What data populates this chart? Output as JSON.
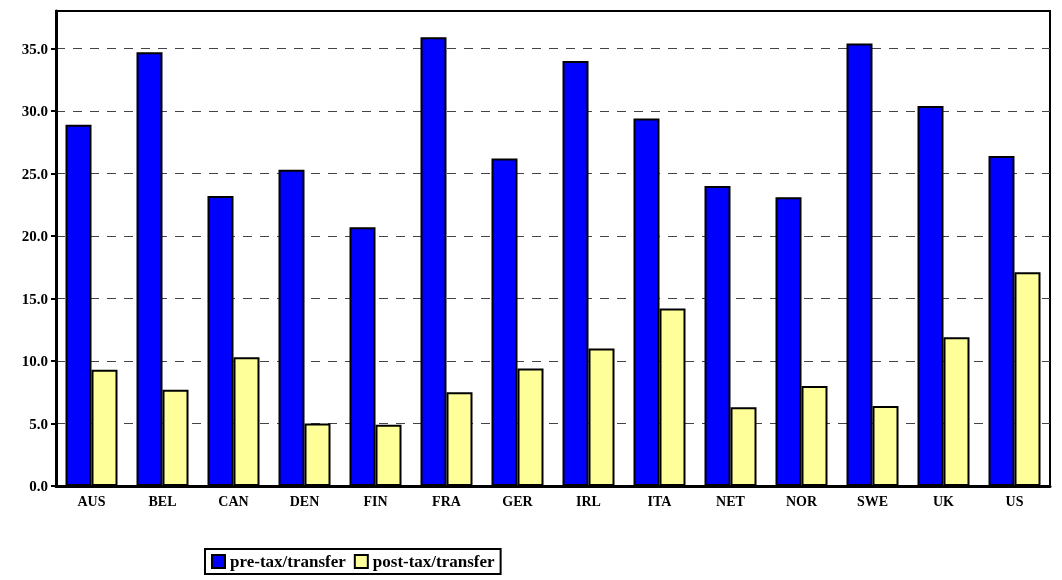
{
  "chart_data": {
    "type": "bar",
    "categories": [
      "AUS",
      "BEL",
      "CAN",
      "DEN",
      "FIN",
      "FRA",
      "GER",
      "IRL",
      "ITA",
      "NET",
      "NOR",
      "SWE",
      "UK",
      "US"
    ],
    "series": [
      {
        "name": "pre-tax/transfer",
        "color": "#0000ff",
        "values": [
          28.9,
          34.7,
          23.2,
          25.3,
          20.7,
          35.9,
          26.2,
          34.0,
          29.4,
          24.0,
          23.1,
          35.4,
          30.4,
          26.4
        ]
      },
      {
        "name": "post-tax/transfer",
        "color": "#ffff99",
        "values": [
          9.3,
          7.7,
          10.3,
          5.0,
          4.9,
          7.5,
          9.4,
          11.0,
          14.2,
          6.3,
          8.0,
          6.4,
          11.9,
          17.1
        ]
      }
    ],
    "ylim": [
      0,
      38
    ],
    "yticks": [
      {
        "value": 0,
        "label": "0.0"
      },
      {
        "value": 5,
        "label": "5.0"
      },
      {
        "value": 10,
        "label": "10.0"
      },
      {
        "value": 15,
        "label": "15.0"
      },
      {
        "value": 20,
        "label": "20.0"
      },
      {
        "value": 25,
        "label": "25.0"
      },
      {
        "value": 30,
        "label": "30.0"
      },
      {
        "value": 35,
        "label": "35.0"
      }
    ],
    "grid": "y",
    "legend": "bottom"
  }
}
